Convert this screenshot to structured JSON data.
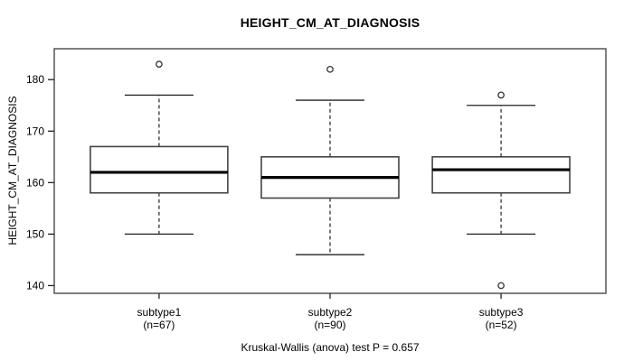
{
  "chart_data": {
    "type": "boxplot",
    "title": "HEIGHT_CM_AT_DIAGNOSIS",
    "ylabel": "HEIGHT_CM_AT_DIAGNOSIS",
    "xlabel": "",
    "annotation": "Kruskal-Wallis (anova) test P = 0.657",
    "ylim": [
      138.5,
      186
    ],
    "yticks": [
      140,
      150,
      160,
      170,
      180
    ],
    "grid": false,
    "categories": [
      "subtype1",
      "subtype2",
      "subtype3"
    ],
    "category_sublabels": [
      "(n=67)",
      "(n=90)",
      "(n=52)"
    ],
    "series": [
      {
        "name": "subtype1",
        "n": 67,
        "low_whisker": 150,
        "q1": 158,
        "median": 162,
        "q3": 167,
        "high_whisker": 177,
        "outliers": [
          183
        ]
      },
      {
        "name": "subtype2",
        "n": 90,
        "low_whisker": 146,
        "q1": 157,
        "median": 161,
        "q3": 165,
        "high_whisker": 176,
        "outliers": [
          182
        ]
      },
      {
        "name": "subtype3",
        "n": 52,
        "low_whisker": 150,
        "q1": 158,
        "median": 162.5,
        "q3": 165,
        "high_whisker": 175,
        "outliers": [
          177,
          140
        ]
      }
    ],
    "colors": {
      "background": "#ffffff",
      "frame_stroke": "#555555",
      "box_stroke": "#444444",
      "box_fill": "#ffffff",
      "median_stroke": "#000000",
      "whisker_stroke": "#222222",
      "outlier_stroke": "#333333",
      "text": "#000000"
    }
  }
}
